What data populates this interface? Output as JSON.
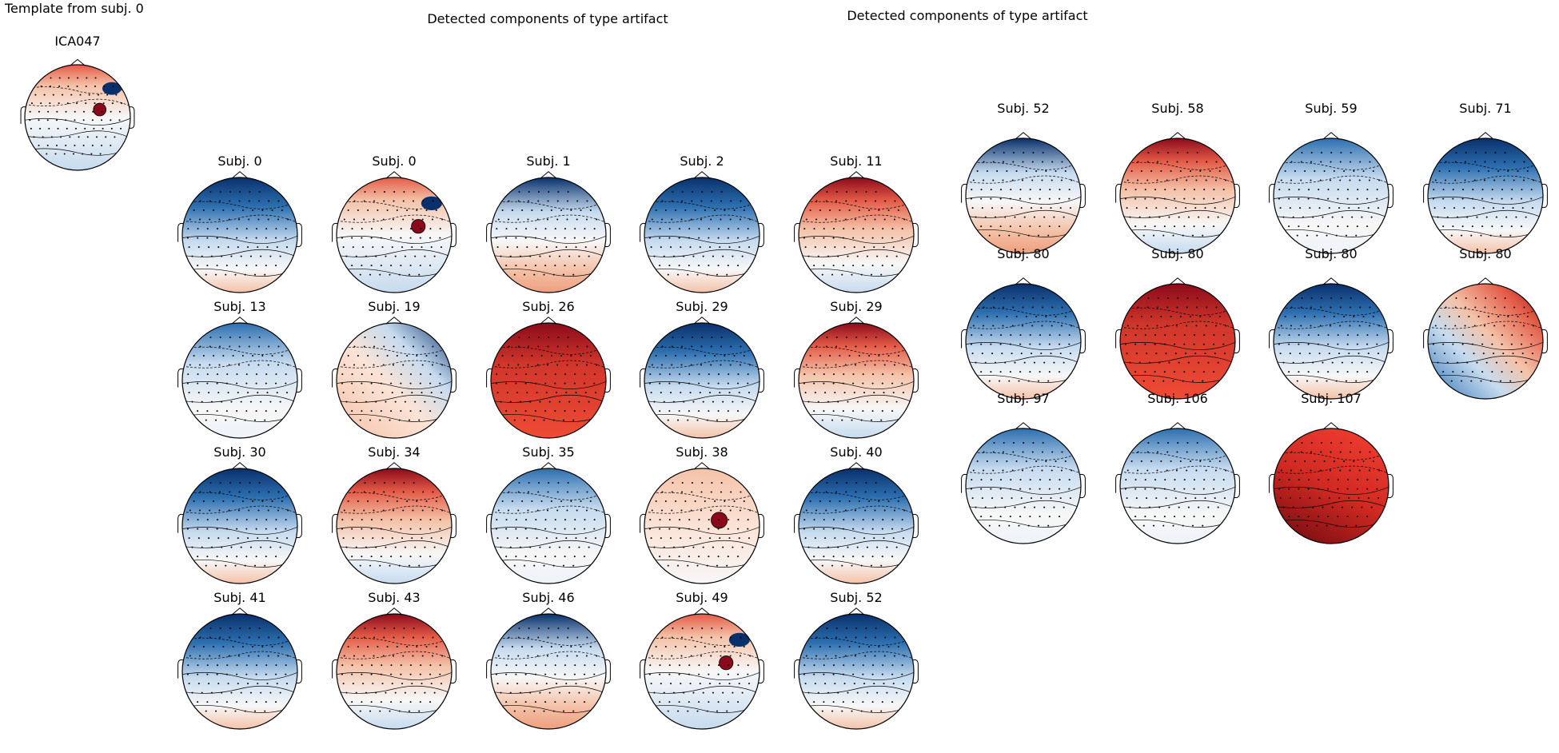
{
  "figure": {
    "template_title": "Template from subj. 0",
    "middle_title": "Detected components of type artifact",
    "right_title": "Detected components of type artifact"
  },
  "colors": {
    "dark_blue": "#08306b",
    "mid_blue": "#2c6fb0",
    "light_blue": "#c6dbef",
    "white": "#f7f7f7",
    "light_red": "#f4c2a8",
    "mid_red": "#e45b47",
    "dark_red": "#8b0a1a"
  },
  "template_map": {
    "label": "ICA047",
    "pattern": "frontal-red-focal"
  },
  "middle_maps": [
    {
      "label": "Subj. 0",
      "pattern": "frontal-blue"
    },
    {
      "label": "Subj. 0",
      "pattern": "frontal-red-focal"
    },
    {
      "label": "Subj. 1",
      "pattern": "frontal-blue-posterior-red"
    },
    {
      "label": "Subj. 2",
      "pattern": "frontal-blue"
    },
    {
      "label": "Subj. 11",
      "pattern": "frontal-red"
    },
    {
      "label": "Subj. 13",
      "pattern": "frontal-blue-light"
    },
    {
      "label": "Subj. 19",
      "pattern": "right-blue-left-red"
    },
    {
      "label": "Subj. 26",
      "pattern": "all-red"
    },
    {
      "label": "Subj. 29",
      "pattern": "frontal-blue"
    },
    {
      "label": "Subj. 29",
      "pattern": "frontal-red"
    },
    {
      "label": "Subj. 30",
      "pattern": "frontal-blue"
    },
    {
      "label": "Subj. 34",
      "pattern": "frontal-red"
    },
    {
      "label": "Subj. 35",
      "pattern": "frontal-blue-light"
    },
    {
      "label": "Subj. 38",
      "pattern": "right-red-focal"
    },
    {
      "label": "Subj. 40",
      "pattern": "frontal-blue"
    },
    {
      "label": "Subj. 41",
      "pattern": "frontal-blue"
    },
    {
      "label": "Subj. 43",
      "pattern": "frontal-red"
    },
    {
      "label": "Subj. 46",
      "pattern": "frontal-blue-posterior-red"
    },
    {
      "label": "Subj. 49",
      "pattern": "frontal-red-focal"
    },
    {
      "label": "Subj. 52",
      "pattern": "frontal-blue"
    }
  ],
  "right_maps": [
    {
      "label": "Subj. 52",
      "pattern": "frontal-blue-posterior-red"
    },
    {
      "label": "Subj. 58",
      "pattern": "frontal-red"
    },
    {
      "label": "Subj. 59",
      "pattern": "frontal-blue-light"
    },
    {
      "label": "Subj. 71",
      "pattern": "frontal-blue"
    },
    {
      "label": "Subj. 80",
      "pattern": "frontal-blue"
    },
    {
      "label": "Subj. 80",
      "pattern": "all-red"
    },
    {
      "label": "Subj. 80",
      "pattern": "frontal-blue"
    },
    {
      "label": "Subj. 80",
      "pattern": "right-red-left-blue"
    },
    {
      "label": "Subj. 97",
      "pattern": "frontal-blue-light"
    },
    {
      "label": "Subj. 106",
      "pattern": "frontal-blue-light"
    },
    {
      "label": "Subj. 107",
      "pattern": "all-red-diagonal"
    }
  ]
}
